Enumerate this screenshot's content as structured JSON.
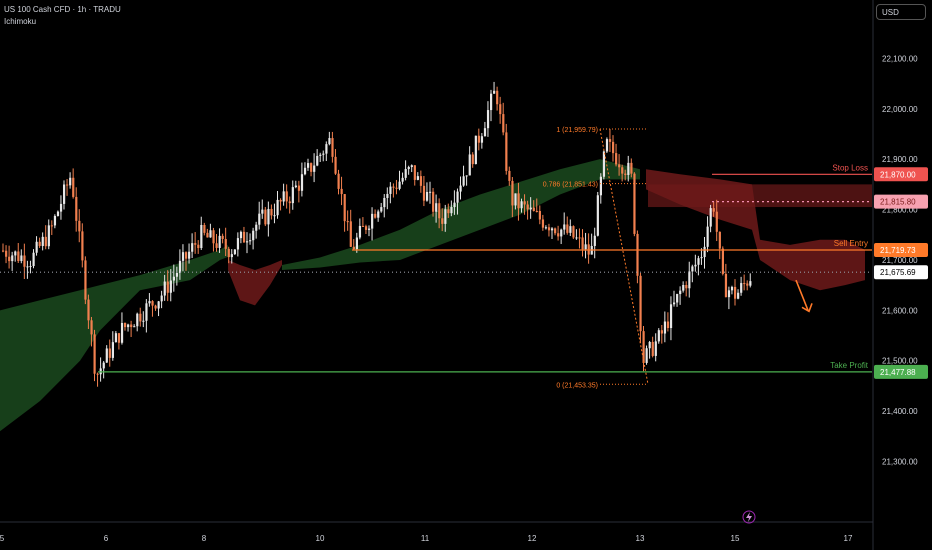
{
  "header": {
    "title": "US 100 Cash CFD · 1h · TRADU",
    "indicator": "Ichimoku",
    "currency": "USD"
  },
  "colors": {
    "background": "#000000",
    "bull": "#e8e8e8",
    "bear": "#f2804f",
    "cloud_bull": "#1b4a1e",
    "cloud_bear": "#6e1a1a",
    "stop_loss": "#ef5350",
    "entry": "#ff7a29",
    "take_profit": "#4caf50",
    "axis_text": "#d1d4dc"
  },
  "chart_data": {
    "type": "candlestick",
    "symbol": "US 100 Cash CFD",
    "timeframe": "1h",
    "ylim": [
      21180,
      22200
    ],
    "y_ticks": [
      "21,300.00",
      "21,400.00",
      "21,500.00",
      "21,600.00",
      "21,700.00",
      "21,800.00",
      "21,900.00",
      "22,000.00",
      "22,100.00"
    ],
    "x_ticks": [
      "5",
      "6",
      "8",
      "10",
      "11",
      "12",
      "13",
      "15",
      "17"
    ],
    "levels": [
      {
        "name": "Stop Loss",
        "value": "21,870.00"
      },
      {
        "name": "",
        "value": "21,815.80"
      },
      {
        "name": "Sell Entry",
        "value": "21,719.73"
      },
      {
        "name": "",
        "value": "21,675.69"
      },
      {
        "name": "Take Profit",
        "value": "21,477.88"
      }
    ],
    "fibonacci": [
      {
        "ratio": "1",
        "label": "1 (21,959.79)",
        "value": 21959.79
      },
      {
        "ratio": "0.786",
        "label": "0.786 (21,851.43)",
        "value": 21851.43
      },
      {
        "ratio": "0",
        "label": "0 (21,453.35)",
        "value": 21453.35
      }
    ],
    "close_levels_of_candles_approx": [
      21720,
      21705,
      21540,
      21630,
      21800,
      21680,
      21840,
      21930,
      21780,
      22020,
      21800,
      21920,
      21500,
      21620,
      21700,
      21810,
      21640,
      21680
    ]
  }
}
